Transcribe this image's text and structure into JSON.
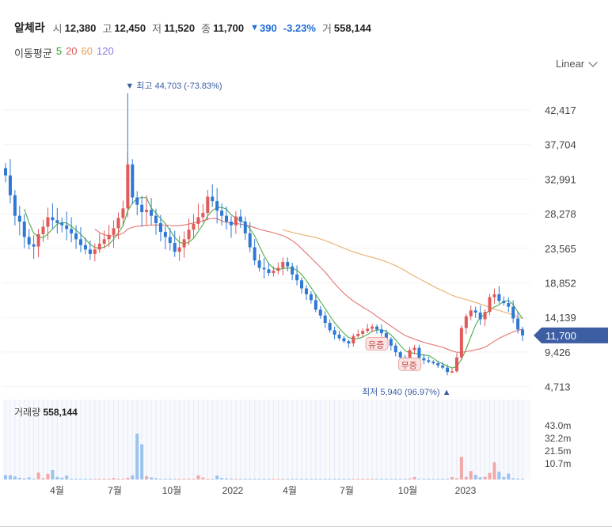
{
  "header": {
    "name": "알체라",
    "open_label": "시",
    "open": "12,380",
    "high_label": "고",
    "high": "12,450",
    "low_label": "저",
    "low": "11,520",
    "close_label": "종",
    "close": "11,700",
    "change": "390",
    "change_pct": "-3.23%",
    "volume_label": "거",
    "volume": "558,144",
    "down_icon": "triangle-down-icon"
  },
  "ma_legend": {
    "title": "이동평균",
    "items": [
      {
        "label": "5",
        "color": "#2ca02c"
      },
      {
        "label": "20",
        "color": "#e05a5a"
      },
      {
        "label": "60",
        "color": "#e8a050"
      },
      {
        "label": "120",
        "color": "#8c7ae0"
      }
    ]
  },
  "scale_select": {
    "label": "Linear",
    "icon": "chevron-down-icon"
  },
  "colors": {
    "up": "#e05a5a",
    "down": "#2f78d4",
    "vol_up": "#f2a8a8",
    "vol_down": "#9cc2ee",
    "current_bg": "#3d5ea3"
  },
  "annotations": {
    "high": "최고 44,703 (-73.83%)",
    "low": "최저 5,940 (96.97%)",
    "badge1": "유증",
    "badge2": "무증"
  },
  "current_price": "11,700",
  "volume_panel": {
    "label": "거래량",
    "value": "558,144"
  },
  "chart_data": {
    "type": "candlestick",
    "y_ticks": [
      "42,417",
      "37,704",
      "32,991",
      "28,278",
      "23,565",
      "18,852",
      "14,139",
      "9,426",
      "4,713"
    ],
    "volume_ticks": [
      "43.0m",
      "32.2m",
      "21.5m",
      "10.7m"
    ],
    "x_ticks": [
      "4월",
      "7월",
      "10월",
      "2022",
      "4월",
      "7월",
      "10월",
      "2023"
    ],
    "high_point": {
      "value": 44703,
      "pct": -73.83
    },
    "low_point": {
      "value": 5940,
      "pct": 96.97
    },
    "last_close": 11700,
    "weekly_close": [
      33500,
      30800,
      28000,
      27200,
      25100,
      24100,
      23800,
      25500,
      26500,
      27800,
      27400,
      27000,
      26700,
      26200,
      25600,
      24800,
      24000,
      23400,
      22800,
      23400,
      24200,
      24800,
      25400,
      26300,
      27700,
      29000,
      35000,
      30500,
      29500,
      28500,
      28800,
      28000,
      27000,
      25800,
      25100,
      24300,
      23100,
      23700,
      24800,
      26100,
      26900,
      27800,
      28400,
      30600,
      30000,
      28700,
      28000,
      27200,
      26700,
      27900,
      27200,
      25600,
      23700,
      21900,
      20900,
      20700,
      20200,
      20500,
      20900,
      21700,
      21100,
      20000,
      19200,
      18100,
      17300,
      16500,
      15200,
      14400,
      13400,
      12400,
      11800,
      11300,
      10900,
      10600,
      11600,
      11900,
      12300,
      12600,
      12900,
      12500,
      12000,
      11200,
      10300,
      9400,
      8700,
      8500,
      9700,
      10000,
      8600,
      8300,
      8100,
      7900,
      7600,
      7300,
      6700,
      6800,
      8700,
      12700,
      14300,
      15100,
      14800,
      13900,
      14900,
      16900,
      17300,
      16400,
      16100,
      15600,
      14000,
      12500,
      11700
    ],
    "weekly_volume_m": [
      4.2,
      4.0,
      2.9,
      1.6,
      1.0,
      2.0,
      0.8,
      6.5,
      1.2,
      5.4,
      8.9,
      2.4,
      1.6,
      3.6,
      0.9,
      0.4,
      0.3,
      0.2,
      0.1,
      0.2,
      0.3,
      0.5,
      0.6,
      1.4,
      0.5,
      0.3,
      1.6,
      4.0,
      43.0,
      33.0,
      3.2,
      1.9,
      1.2,
      0.6,
      0.4,
      0.8,
      0.3,
      0.2,
      0.5,
      0.9,
      0.6,
      3.9,
      1.8,
      0.6,
      0.4,
      3.7,
      1.4,
      1.1,
      0.8,
      0.6,
      0.5,
      0.3,
      0.2,
      0.2,
      0.1,
      0.1,
      0.1,
      0.1,
      0.1,
      0.2,
      0.3,
      0.2,
      0.4,
      0.2,
      0.1,
      0.1,
      0.1,
      0.1,
      0.1,
      0.2,
      0.1,
      0.2,
      0.1,
      0.2,
      0.2,
      0.3,
      0.6,
      0.7,
      0.4,
      0.3,
      0.2,
      0.2,
      0.1,
      0.2,
      0.4,
      0.4,
      1.0,
      2.3,
      0.5,
      0.6,
      0.7,
      0.5,
      0.6,
      0.4,
      0.3,
      2.2,
      1.2,
      21.2,
      2.4,
      7.9,
      4.4,
      2.1,
      2.6,
      6.1,
      16.1,
      7.3,
      2.4,
      5.5,
      1.2,
      0.9,
      0.5
    ]
  }
}
